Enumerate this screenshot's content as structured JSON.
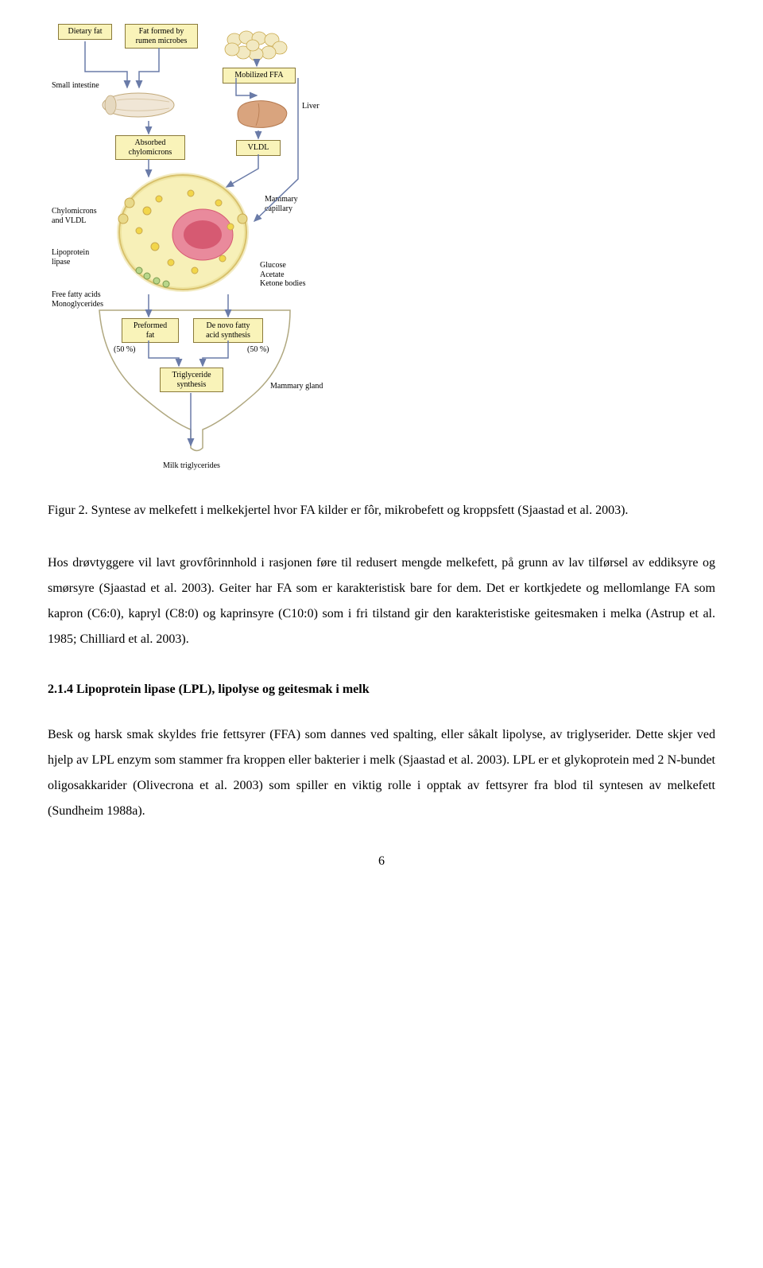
{
  "diagram": {
    "boxes": {
      "dietary_fat": "Dietary fat",
      "rumen_fat": "Fat formed by\nrumen microbes",
      "mobilized_ffa": "Mobilized FFA",
      "absorbed_chylo": "Absorbed\nchylomicrons",
      "vldl": "VLDL",
      "preformed_fat": "Preformed\nfat",
      "de_novo": "De novo fatty\nacid synthesis",
      "triglyceride": "Triglyceride\nsynthesis"
    },
    "labels": {
      "small_intestine": "Small intestine",
      "liver": "Liver",
      "chylo_vldl": "Chylomicrons\nand VLDL",
      "lipoprotein_lipase": "Lipoprotein\nlipase",
      "ffa_mono": "Free fatty acids\nMonoglycerides",
      "mammary_capillary": "Mammary\ncapillary",
      "glucose_etc": "Glucose\nAcetate\nKetone bodies",
      "pct_left": "(50 %)",
      "pct_right": "(50 %)",
      "mammary_gland": "Mammary gland",
      "milk_tg": "Milk triglycerides"
    },
    "colors": {
      "box_fill": "#f9f3b9",
      "box_border": "#8a7a3a",
      "cell_fill": "#f7f0b8",
      "cell_border": "#c9a94e",
      "nucleus": "#e98a9c",
      "nucleus_dark": "#d65a72",
      "intestine": "#f0e6d6",
      "liver": "#d9a47e",
      "adipose": "#f2e9c2",
      "arrow": "#6a7ba8"
    }
  },
  "caption": "Figur 2. Syntese av melkefett i melkekjertel hvor FA kilder er fôr, mikrobefett og kroppsfett (Sjaastad et al. 2003).",
  "paragraph1": "Hos drøvtyggere vil lavt grovfôrinnhold i rasjonen føre til redusert mengde melkefett, på grunn av lav tilførsel av eddiksyre og smørsyre (Sjaastad et al. 2003). Geiter har FA som er karakteristisk bare for dem. Det er kortkjedete og mellomlange FA som kapron (C6:0), kapryl (C8:0) og kaprinsyre (C10:0) som i fri tilstand gir den karakteristiske geitesmaken i melka (Astrup et al. 1985; Chilliard et al. 2003).",
  "section_heading": "2.1.4 Lipoprotein lipase (LPL), lipolyse og geitesmak i melk",
  "paragraph2": "Besk og harsk smak skyldes frie fettsyrer (FFA) som dannes ved spalting, eller såkalt lipolyse, av triglyserider. Dette skjer ved hjelp av LPL enzym som stammer fra kroppen eller bakterier i melk (Sjaastad et al. 2003). LPL er et glykoprotein med 2 N-bundet oligosakkarider (Olivecrona et al. 2003) som spiller en viktig rolle i opptak av fettsyrer fra blod til syntesen av melkefett (Sundheim 1988a).",
  "page_number": "6"
}
